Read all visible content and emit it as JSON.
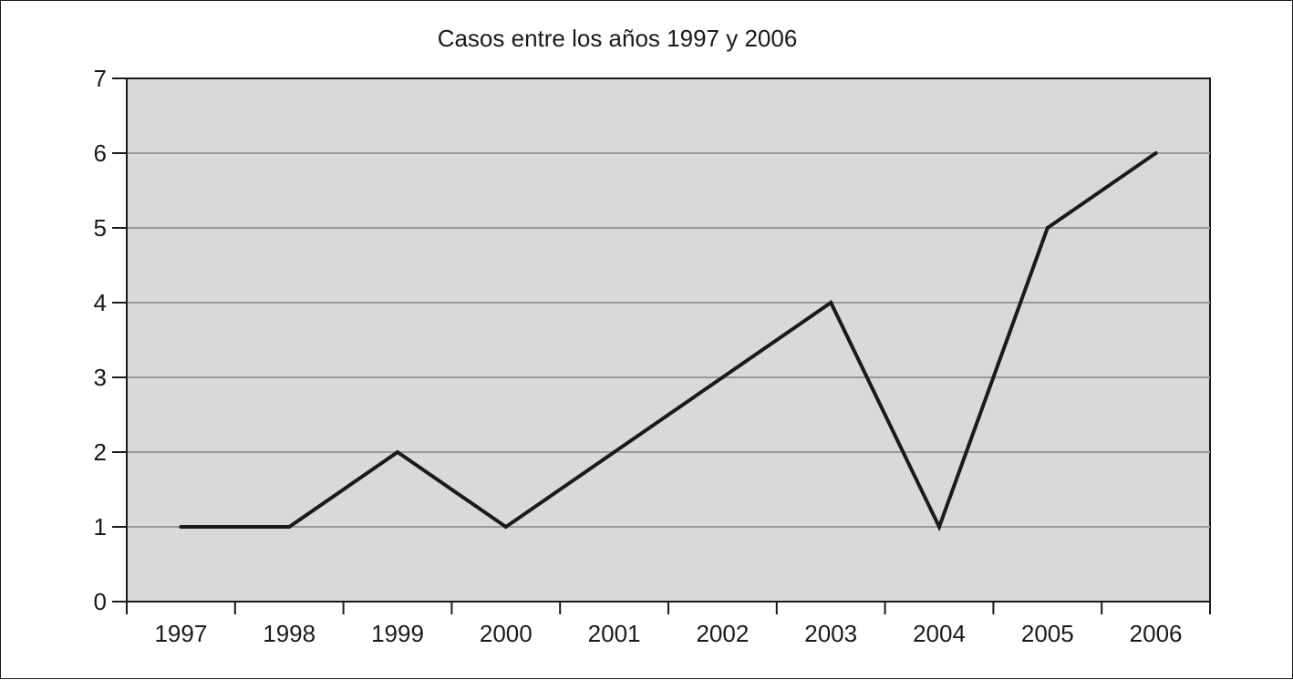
{
  "chart_data": {
    "type": "line",
    "title": "Casos entre los años 1997 y 2006",
    "xlabel": "",
    "ylabel": "",
    "categories": [
      "1997",
      "1998",
      "1999",
      "2000",
      "2001",
      "2002",
      "2003",
      "2004",
      "2005",
      "2006"
    ],
    "values": [
      1,
      1,
      2,
      1,
      2,
      3,
      4,
      1,
      5,
      6
    ],
    "ylim": [
      0,
      7
    ],
    "yticks": [
      0,
      1,
      2,
      3,
      4,
      5,
      6,
      7
    ],
    "grid": true,
    "legend": "none",
    "colors": {
      "plot_background": "#d9d9d9",
      "gridline": "#9a9a9a",
      "line": "#1a1a1a",
      "axis": "#1a1a1a"
    }
  }
}
